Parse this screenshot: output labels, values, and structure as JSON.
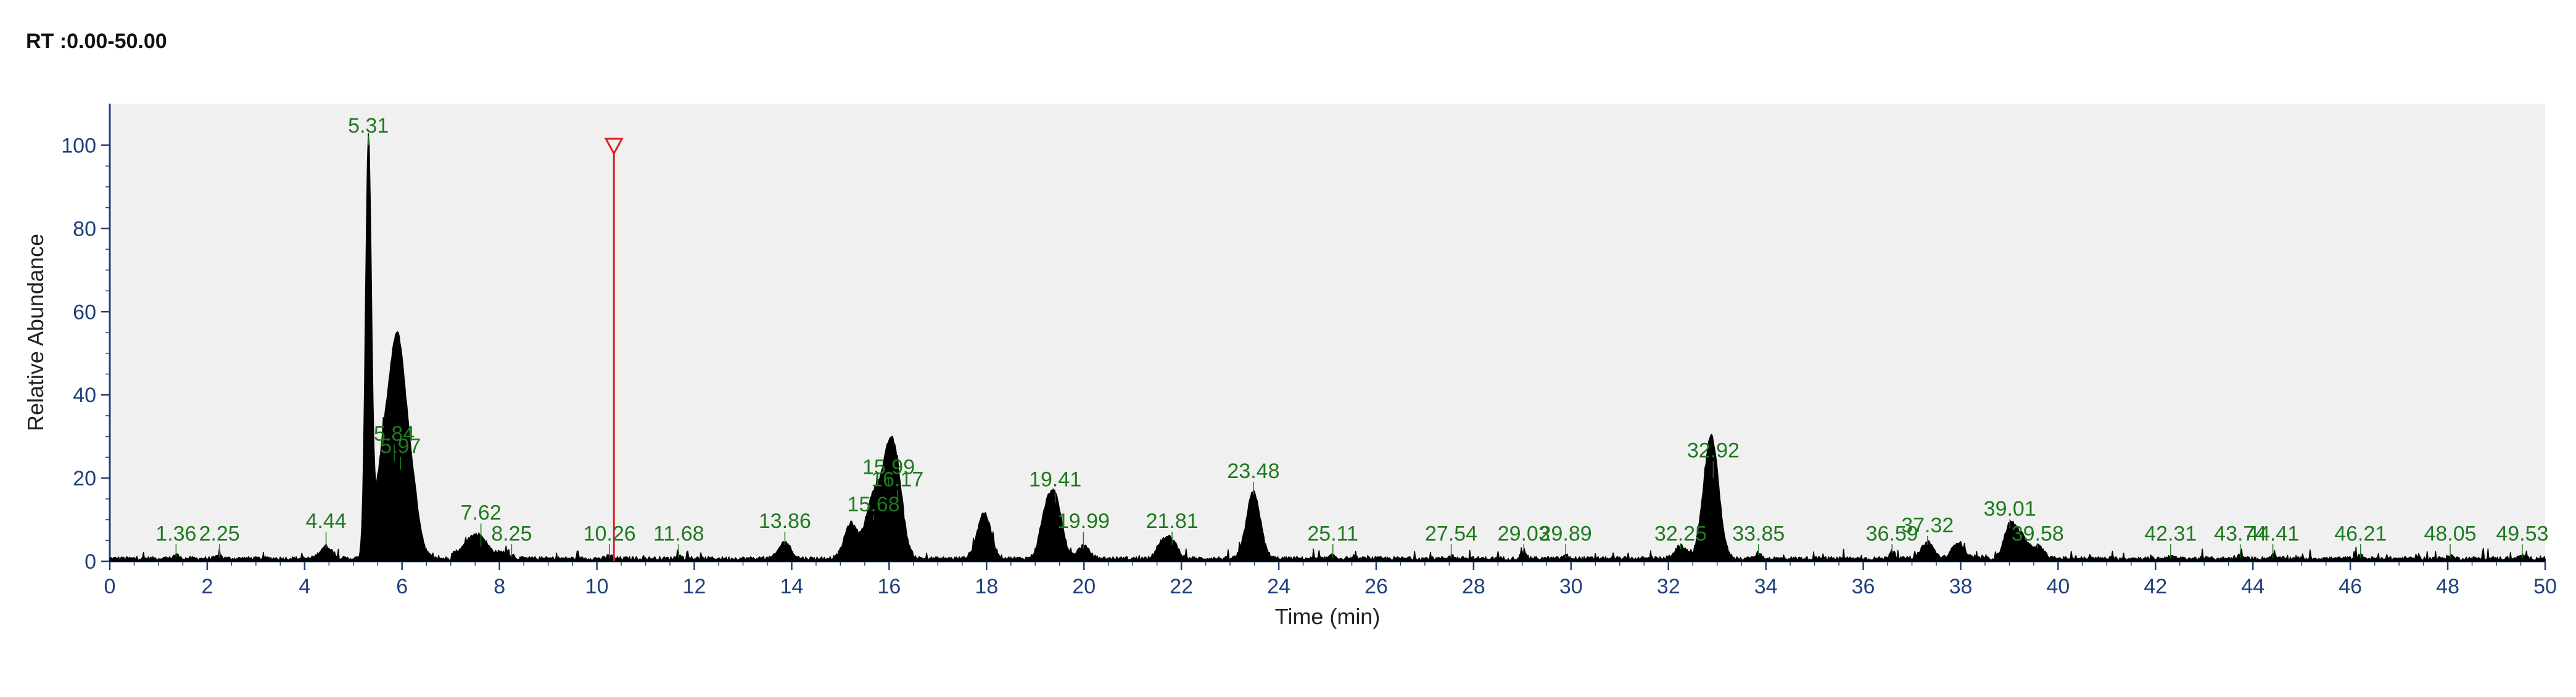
{
  "header": {
    "rt_range": "RT :0.00-50.00"
  },
  "colors": {
    "plot_background": "#f0f0f0",
    "trace": "#000000",
    "axis": "#1f3f7a",
    "peak_labels": "#1e7a1e",
    "marker": "#e02020"
  },
  "chart_data": {
    "type": "line",
    "xlabel": "Time (min)",
    "ylabel": "Relative Abundance",
    "xlim": [
      0,
      50
    ],
    "ylim": [
      0,
      110
    ],
    "grid": false,
    "x_ticks": [
      0,
      2,
      4,
      6,
      8,
      10,
      12,
      14,
      16,
      18,
      20,
      22,
      24,
      26,
      28,
      30,
      32,
      34,
      36,
      38,
      40,
      42,
      44,
      46,
      48,
      50
    ],
    "x_tick_labels": [
      "0",
      "2",
      "4",
      "6",
      "8",
      "10",
      "12",
      "14",
      "16",
      "18",
      "20",
      "22",
      "24",
      "26",
      "28",
      "30",
      "32",
      "34",
      "36",
      "38",
      "40",
      "42",
      "44",
      "46",
      "48",
      "50"
    ],
    "y_ticks": [
      0,
      20,
      40,
      60,
      80,
      100
    ],
    "y_tick_labels": [
      "0",
      "20",
      "40",
      "60",
      "80",
      "100"
    ],
    "marker_rt": 10.35,
    "peaks": [
      {
        "label": "1.36",
        "rt": 1.36,
        "height": 1.0,
        "label_y": 5
      },
      {
        "label": "2.25",
        "rt": 2.25,
        "height": 0.8,
        "label_y": 5
      },
      {
        "label": "4.44",
        "rt": 4.44,
        "height": 3.0,
        "label_y": 8
      },
      {
        "label": "5.31",
        "rt": 5.31,
        "height": 100,
        "label_y": 103
      },
      {
        "label": "5.84",
        "rt": 5.84,
        "height": 24,
        "label_y": 29
      },
      {
        "label": "5.97",
        "rt": 5.97,
        "height": 22,
        "label_y": 26
      },
      {
        "label": "7.62",
        "rt": 7.62,
        "height": 3.5,
        "label_y": 10
      },
      {
        "label": "8.25",
        "rt": 8.25,
        "height": 1.0,
        "label_y": 5
      },
      {
        "label": "10.26",
        "rt": 10.26,
        "height": 0.8,
        "label_y": 5
      },
      {
        "label": "11.68",
        "rt": 11.68,
        "height": 0.8,
        "label_y": 5
      },
      {
        "label": "13.86",
        "rt": 13.86,
        "height": 4.0,
        "label_y": 8
      },
      {
        "label": "15.68",
        "rt": 15.68,
        "height": 10,
        "label_y": 12
      },
      {
        "label": "15.99",
        "rt": 15.99,
        "height": 18,
        "label_y": 21
      },
      {
        "label": "16.17",
        "rt": 16.17,
        "height": 14,
        "label_y": 18
      },
      {
        "label": "19.41",
        "rt": 19.41,
        "height": 14,
        "label_y": 18
      },
      {
        "label": "19.99",
        "rt": 19.99,
        "height": 3.0,
        "label_y": 8
      },
      {
        "label": "21.81",
        "rt": 21.81,
        "height": 4.0,
        "label_y": 8
      },
      {
        "label": "23.48",
        "rt": 23.48,
        "height": 16,
        "label_y": 20
      },
      {
        "label": "25.11",
        "rt": 25.11,
        "height": 0.8,
        "label_y": 5
      },
      {
        "label": "27.54",
        "rt": 27.54,
        "height": 0.8,
        "label_y": 5
      },
      {
        "label": "29.03",
        "rt": 29.03,
        "height": 2.0,
        "label_y": 5
      },
      {
        "label": "29.89",
        "rt": 29.89,
        "height": 0.8,
        "label_y": 5
      },
      {
        "label": "32.25",
        "rt": 32.25,
        "height": 3.0,
        "label_y": 5
      },
      {
        "label": "32.92",
        "rt": 32.92,
        "height": 20,
        "label_y": 25
      },
      {
        "label": "33.85",
        "rt": 33.85,
        "height": 1.5,
        "label_y": 5
      },
      {
        "label": "36.59",
        "rt": 36.59,
        "height": 2.0,
        "label_y": 5
      },
      {
        "label": "37.32",
        "rt": 37.32,
        "height": 4.0,
        "label_y": 7
      },
      {
        "label": "39.01",
        "rt": 39.01,
        "height": 8.0,
        "label_y": 11
      },
      {
        "label": "39.58",
        "rt": 39.58,
        "height": 3.0,
        "label_y": 5
      },
      {
        "label": "42.31",
        "rt": 42.31,
        "height": 0.8,
        "label_y": 5
      },
      {
        "label": "43.74",
        "rt": 43.74,
        "height": 0.8,
        "label_y": 5
      },
      {
        "label": "44.41",
        "rt": 44.41,
        "height": 0.8,
        "label_y": 5
      },
      {
        "label": "46.21",
        "rt": 46.21,
        "height": 0.8,
        "label_y": 5
      },
      {
        "label": "48.05",
        "rt": 48.05,
        "height": 0.8,
        "label_y": 5
      },
      {
        "label": "49.53",
        "rt": 49.53,
        "height": 0.8,
        "label_y": 5
      }
    ],
    "minor_peaks": [
      {
        "rt": 5.6,
        "height": 20
      },
      {
        "rt": 6.2,
        "height": 12
      },
      {
        "rt": 7.4,
        "height": 3.0
      },
      {
        "rt": 15.2,
        "height": 7.0
      },
      {
        "rt": 17.95,
        "height": 11
      },
      {
        "rt": 19.2,
        "height": 8.0
      },
      {
        "rt": 21.6,
        "height": 3.5
      },
      {
        "rt": 32.8,
        "height": 12
      },
      {
        "rt": 37.95,
        "height": 4.0
      },
      {
        "rt": 39.25,
        "height": 5.0
      }
    ]
  }
}
